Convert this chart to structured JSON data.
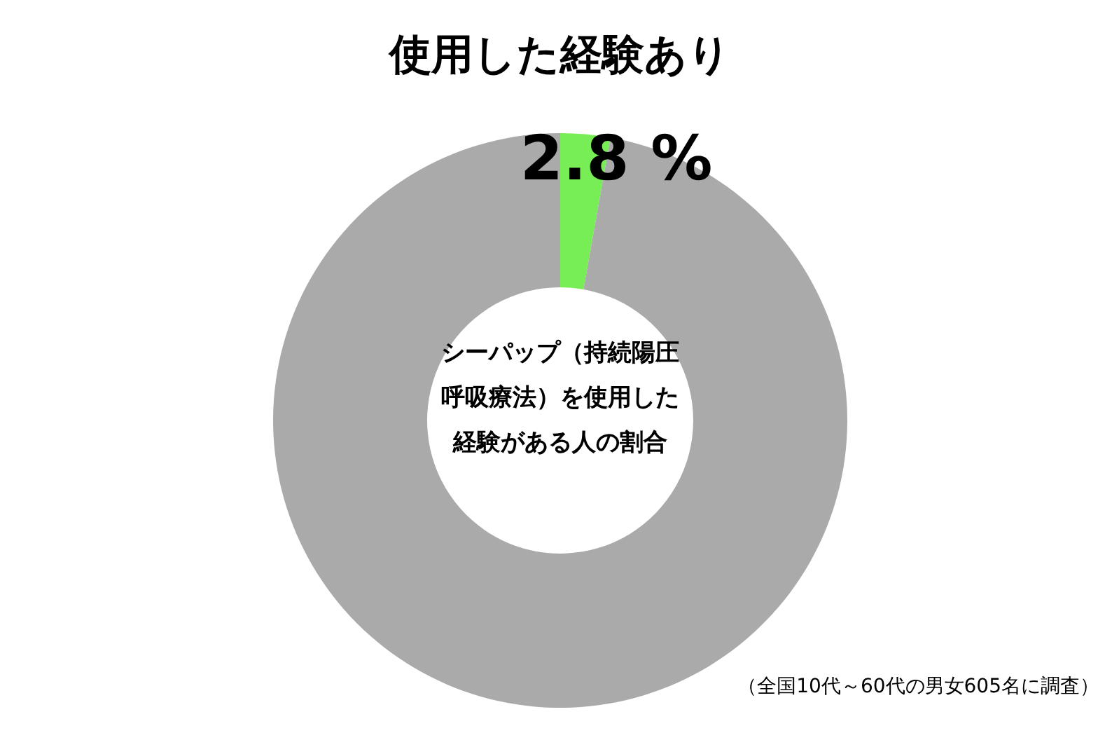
{
  "chart_data": {
    "type": "donut",
    "title": "シーパップ（持続陽圧呼吸療法）を使用した経験がある人の割合",
    "categories": [
      "使用した経験あり",
      null
    ],
    "values": [
      2.8,
      97.2
    ],
    "colors": [
      "#77ee55",
      "#aaaaaa"
    ],
    "value_labels": [
      "2.8 %",
      null
    ],
    "annotations": [
      "（全国10代～60代の男女605名に調査）"
    ]
  }
}
